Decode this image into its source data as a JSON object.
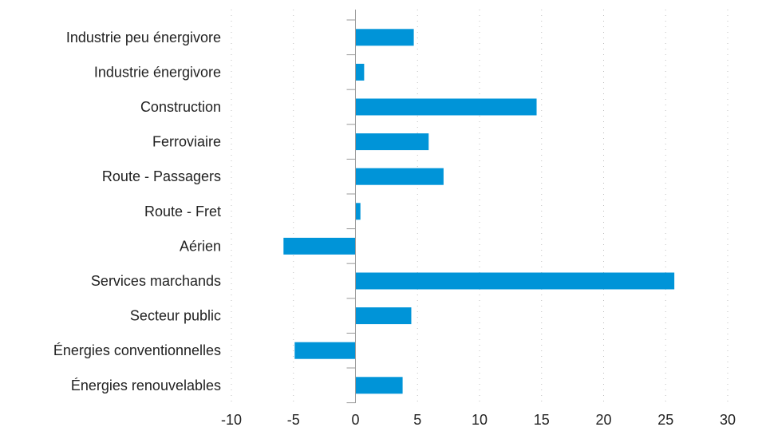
{
  "chart_data": {
    "type": "bar",
    "orientation": "horizontal",
    "categories": [
      "Industrie peu énergivore",
      "Industrie énergivore",
      "Construction",
      "Ferroviaire",
      "Route - Passagers",
      "Route - Fret",
      "Aérien",
      "Services marchands",
      "Secteur public",
      "Énergies conventionnelles",
      "Énergies renouvelables"
    ],
    "values": [
      4.7,
      0.7,
      14.6,
      5.9,
      7.1,
      0.4,
      -5.8,
      25.7,
      4.5,
      -4.9,
      3.8
    ],
    "xlim": [
      -10,
      32
    ],
    "xticks": [
      -10,
      -5,
      0,
      5,
      10,
      15,
      20,
      25,
      30
    ],
    "grid": "vertical dotted",
    "bar_color": "#0094d8",
    "title": "",
    "xlabel": "",
    "ylabel": ""
  }
}
